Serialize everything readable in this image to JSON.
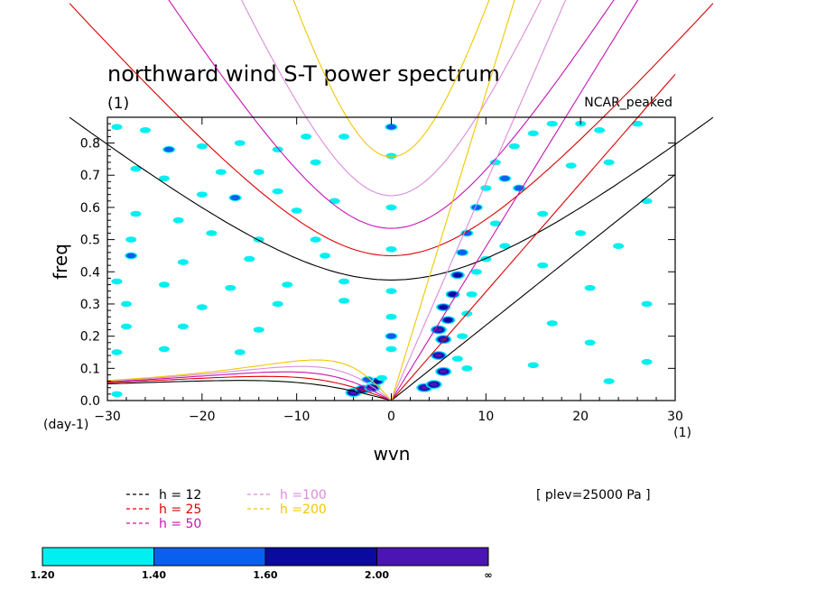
{
  "chart_data": {
    "type": "heatmap",
    "title": "northward wind S-T power spectrum",
    "subtitle": "(1)",
    "annotation_right": "NCAR_peaked",
    "xlabel": "wvn",
    "ylabel": "freq",
    "x_unit_label": "(1)",
    "y_unit_label": "(day-1)",
    "xlim": [
      -30,
      30
    ],
    "ylim": [
      0.0,
      0.88
    ],
    "x_ticks": [
      -30,
      -20,
      -10,
      0,
      10,
      20,
      30
    ],
    "y_ticks": [
      0.0,
      0.1,
      0.2,
      0.3,
      0.4,
      0.5,
      0.6,
      0.7,
      0.8
    ],
    "x_tick_labels": [
      "-30",
      "-20",
      "-10",
      "0",
      "10",
      "20",
      "30"
    ],
    "y_tick_labels": [
      "0.0",
      "0.1",
      "0.2",
      "0.3",
      "0.4",
      "0.5",
      "0.6",
      "0.7",
      "0.8"
    ],
    "contour_levels": [
      {
        "label": "1.20",
        "color": "#00f0f0"
      },
      {
        "label": "1.40",
        "color": "#0a5ff0"
      },
      {
        "label": "1.60",
        "color": "#0a0aa0"
      },
      {
        "label": "2.00",
        "color": "#4b14b4"
      },
      {
        "label": "∞",
        "color": null
      }
    ],
    "dispersion_curves": [
      {
        "name": "h = 12",
        "color": "#000000"
      },
      {
        "name": "h = 25",
        "color": "#dc0000"
      },
      {
        "name": "h = 50",
        "color": "#c814b4"
      },
      {
        "name": "h =100",
        "color": "#dc8cdc"
      },
      {
        "name": "h =200",
        "color": "#f0c800"
      }
    ],
    "level_info": "[ plev=25000 Pa ]",
    "power_blobs": [
      {
        "x": -29,
        "y": 0.85,
        "level": 0
      },
      {
        "x": -26,
        "y": 0.84,
        "level": 0
      },
      {
        "x": -23.5,
        "y": 0.78,
        "level": 1
      },
      {
        "x": -20,
        "y": 0.79,
        "level": 0
      },
      {
        "x": -16,
        "y": 0.8,
        "level": 0
      },
      {
        "x": -12,
        "y": 0.78,
        "level": 0
      },
      {
        "x": -9,
        "y": 0.82,
        "level": 0
      },
      {
        "x": -5,
        "y": 0.82,
        "level": 0
      },
      {
        "x": -27,
        "y": 0.72,
        "level": 0
      },
      {
        "x": -24,
        "y": 0.69,
        "level": 0
      },
      {
        "x": -18,
        "y": 0.71,
        "level": 0
      },
      {
        "x": -14,
        "y": 0.71,
        "level": 0
      },
      {
        "x": -8,
        "y": 0.74,
        "level": 0
      },
      {
        "x": -20,
        "y": 0.64,
        "level": 0
      },
      {
        "x": -16.5,
        "y": 0.63,
        "level": 1
      },
      {
        "x": -12,
        "y": 0.65,
        "level": 0
      },
      {
        "x": -27,
        "y": 0.58,
        "level": 0
      },
      {
        "x": -22.5,
        "y": 0.56,
        "level": 0
      },
      {
        "x": -10,
        "y": 0.59,
        "level": 0
      },
      {
        "x": -6,
        "y": 0.62,
        "level": 0
      },
      {
        "x": -27.5,
        "y": 0.5,
        "level": 0
      },
      {
        "x": -19,
        "y": 0.52,
        "level": 0
      },
      {
        "x": -14,
        "y": 0.5,
        "level": 0
      },
      {
        "x": -8,
        "y": 0.5,
        "level": 0
      },
      {
        "x": -27.5,
        "y": 0.45,
        "level": 1
      },
      {
        "x": -22,
        "y": 0.43,
        "level": 0
      },
      {
        "x": -15,
        "y": 0.44,
        "level": 0
      },
      {
        "x": -7,
        "y": 0.45,
        "level": 0
      },
      {
        "x": -29,
        "y": 0.37,
        "level": 0
      },
      {
        "x": -24,
        "y": 0.36,
        "level": 0
      },
      {
        "x": -17,
        "y": 0.35,
        "level": 0
      },
      {
        "x": -11,
        "y": 0.36,
        "level": 0
      },
      {
        "x": -5,
        "y": 0.37,
        "level": 0
      },
      {
        "x": -28,
        "y": 0.3,
        "level": 0
      },
      {
        "x": -20,
        "y": 0.29,
        "level": 0
      },
      {
        "x": -12,
        "y": 0.3,
        "level": 0
      },
      {
        "x": -5,
        "y": 0.31,
        "level": 0
      },
      {
        "x": -28,
        "y": 0.23,
        "level": 0
      },
      {
        "x": -22,
        "y": 0.23,
        "level": 0
      },
      {
        "x": -14,
        "y": 0.22,
        "level": 0
      },
      {
        "x": -29,
        "y": 0.15,
        "level": 0
      },
      {
        "x": -24,
        "y": 0.16,
        "level": 0
      },
      {
        "x": -16,
        "y": 0.15,
        "level": 0
      },
      {
        "x": -29,
        "y": 0.02,
        "level": 0
      },
      {
        "x": -4,
        "y": 0.025,
        "level": 3
      },
      {
        "x": -3,
        "y": 0.035,
        "level": 3
      },
      {
        "x": -2,
        "y": 0.04,
        "level": 3
      },
      {
        "x": -1.5,
        "y": 0.06,
        "level": 2
      },
      {
        "x": -2.5,
        "y": 0.065,
        "level": 1
      },
      {
        "x": -1,
        "y": 0.07,
        "level": 0
      },
      {
        "x": 0,
        "y": 0.85,
        "level": 1
      },
      {
        "x": 0,
        "y": 0.76,
        "level": 0
      },
      {
        "x": 0,
        "y": 0.6,
        "level": 0
      },
      {
        "x": 0,
        "y": 0.47,
        "level": 0
      },
      {
        "x": 0,
        "y": 0.34,
        "level": 0
      },
      {
        "x": 0,
        "y": 0.2,
        "level": 1
      },
      {
        "x": 0,
        "y": 0.16,
        "level": 0
      },
      {
        "x": 0,
        "y": 0.26,
        "level": 0
      },
      {
        "x": 3.5,
        "y": 0.04,
        "level": 3
      },
      {
        "x": 4.5,
        "y": 0.05,
        "level": 3
      },
      {
        "x": 5.5,
        "y": 0.09,
        "level": 3
      },
      {
        "x": 5,
        "y": 0.14,
        "level": 3
      },
      {
        "x": 5.5,
        "y": 0.19,
        "level": 3
      },
      {
        "x": 5,
        "y": 0.22,
        "level": 3
      },
      {
        "x": 6,
        "y": 0.25,
        "level": 2
      },
      {
        "x": 5.5,
        "y": 0.29,
        "level": 2
      },
      {
        "x": 6.5,
        "y": 0.33,
        "level": 2
      },
      {
        "x": 7,
        "y": 0.39,
        "level": 2
      },
      {
        "x": 7.5,
        "y": 0.46,
        "level": 1
      },
      {
        "x": 8,
        "y": 0.52,
        "level": 1
      },
      {
        "x": 9,
        "y": 0.6,
        "level": 1
      },
      {
        "x": 10,
        "y": 0.66,
        "level": 0
      },
      {
        "x": 12,
        "y": 0.69,
        "level": 1
      },
      {
        "x": 13.5,
        "y": 0.66,
        "level": 1
      },
      {
        "x": 11,
        "y": 0.74,
        "level": 0
      },
      {
        "x": 13,
        "y": 0.79,
        "level": 0
      },
      {
        "x": 11,
        "y": 0.55,
        "level": 0
      },
      {
        "x": 12,
        "y": 0.48,
        "level": 0
      },
      {
        "x": 10,
        "y": 0.44,
        "level": 0
      },
      {
        "x": 9,
        "y": 0.4,
        "level": 0
      },
      {
        "x": 8.5,
        "y": 0.33,
        "level": 0
      },
      {
        "x": 8,
        "y": 0.27,
        "level": 0
      },
      {
        "x": 7.5,
        "y": 0.2,
        "level": 0
      },
      {
        "x": 7,
        "y": 0.13,
        "level": 0
      },
      {
        "x": 8,
        "y": 0.1,
        "level": 0
      },
      {
        "x": 15,
        "y": 0.83,
        "level": 0
      },
      {
        "x": 17,
        "y": 0.86,
        "level": 0
      },
      {
        "x": 20,
        "y": 0.86,
        "level": 0
      },
      {
        "x": 22,
        "y": 0.84,
        "level": 0
      },
      {
        "x": 26,
        "y": 0.86,
        "level": 0
      },
      {
        "x": 19,
        "y": 0.73,
        "level": 0
      },
      {
        "x": 23,
        "y": 0.74,
        "level": 0
      },
      {
        "x": 27,
        "y": 0.62,
        "level": 0
      },
      {
        "x": 16,
        "y": 0.58,
        "level": 0
      },
      {
        "x": 20,
        "y": 0.52,
        "level": 0
      },
      {
        "x": 24,
        "y": 0.48,
        "level": 0
      },
      {
        "x": 16,
        "y": 0.42,
        "level": 0
      },
      {
        "x": 21,
        "y": 0.35,
        "level": 0
      },
      {
        "x": 27,
        "y": 0.3,
        "level": 0
      },
      {
        "x": 17,
        "y": 0.24,
        "level": 0
      },
      {
        "x": 21,
        "y": 0.18,
        "level": 0
      },
      {
        "x": 15,
        "y": 0.11,
        "level": 0
      },
      {
        "x": 23,
        "y": 0.06,
        "level": 0
      },
      {
        "x": 27,
        "y": 0.12,
        "level": 0
      }
    ]
  }
}
